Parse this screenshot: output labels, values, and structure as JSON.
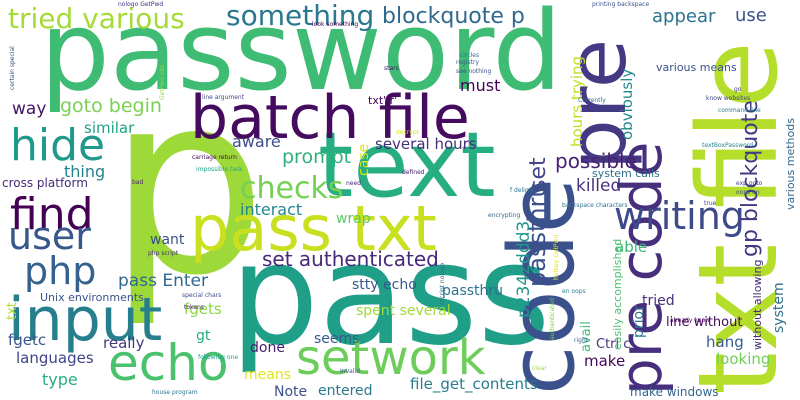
{
  "words": [
    {
      "text": "password",
      "color": "#3fbc73"
    },
    {
      "text": "p",
      "color": "#9ed93a"
    },
    {
      "text": "pass",
      "color": "#1f9f88"
    },
    {
      "text": "text",
      "color": "#26ad81"
    },
    {
      "text": "batch file",
      "color": "#450b5e"
    },
    {
      "text": "pre",
      "color": "#443a83"
    },
    {
      "text": "code",
      "color": "#3b518b"
    },
    {
      "text": "txt file",
      "color": "#b5de2b"
    },
    {
      "text": "pass txt",
      "color": "#c8e020"
    },
    {
      "text": "echo",
      "color": "#4ac16d"
    },
    {
      "text": "setwork",
      "color": "#6ccd5a"
    },
    {
      "text": "input",
      "color": "#277f8e"
    },
    {
      "text": "pre code",
      "color": "#472f7d"
    },
    {
      "text": "find",
      "color": "#440154"
    },
    {
      "text": "hide",
      "color": "#1f9a8a"
    },
    {
      "text": "user",
      "color": "#38588c"
    },
    {
      "text": "php",
      "color": "#33638d"
    },
    {
      "text": "writing",
      "color": "#3e4a89"
    },
    {
      "text": "checks",
      "color": "#75d054"
    },
    {
      "text": "tried various",
      "color": "#a5db36"
    },
    {
      "text": "something",
      "color": "#2a788e"
    },
    {
      "text": "blockquote p",
      "color": "#31688e"
    },
    {
      "text": "gp blockquote",
      "color": "#443983"
    },
    {
      "text": "set",
      "color": "#404688"
    },
    {
      "text": "passthru",
      "color": "#3b518b"
    },
    {
      "text": "p2342ddd3",
      "color": "#1f968b"
    },
    {
      "text": "possible",
      "color": "#482173"
    },
    {
      "text": "set authenticated",
      "color": "#482878"
    },
    {
      "text": "goto begin",
      "color": "#7ad151"
    },
    {
      "text": "prompt",
      "color": "#2db27d"
    },
    {
      "text": "interact",
      "color": "#24868e"
    },
    {
      "text": "aware",
      "color": "#3e4c8a"
    },
    {
      "text": "thing",
      "color": "#25838e"
    },
    {
      "text": "similar",
      "color": "#1fa287"
    },
    {
      "text": "way",
      "color": "#471365"
    },
    {
      "text": "must",
      "color": "#440154"
    },
    {
      "text": "appear",
      "color": "#2c728e"
    },
    {
      "text": "use",
      "color": "#3b528b"
    },
    {
      "text": "obviously",
      "color": "#23898e"
    },
    {
      "text": "hours trying",
      "color": "#c2df23"
    },
    {
      "text": "killed",
      "color": "#46337e"
    },
    {
      "text": "several hours",
      "color": "#472d7b"
    },
    {
      "text": "case",
      "color": "#dde318"
    },
    {
      "text": "want",
      "color": "#3d4d8a"
    },
    {
      "text": "wrap",
      "color": "#5cc863"
    },
    {
      "text": "able",
      "color": "#3aba76"
    },
    {
      "text": "pass Enter",
      "color": "#31688e"
    },
    {
      "text": "stty echo",
      "color": "#38598c"
    },
    {
      "text": "passthru",
      "color": "#2d718e"
    },
    {
      "text": "tried",
      "color": "#46307e"
    },
    {
      "text": "prior",
      "color": "#2a788e"
    },
    {
      "text": "system",
      "color": "#2e6f8e"
    },
    {
      "text": "fgets",
      "color": "#8bd646"
    },
    {
      "text": "gt",
      "color": "#25ac82"
    },
    {
      "text": "really",
      "color": "#453882"
    },
    {
      "text": "fgetc",
      "color": "#39568c"
    },
    {
      "text": "languages",
      "color": "#404387"
    },
    {
      "text": "type",
      "color": "#29af7f"
    },
    {
      "text": "done",
      "color": "#481d6f"
    },
    {
      "text": "seems",
      "color": "#375a8c"
    },
    {
      "text": "spent several",
      "color": "#a0da39"
    },
    {
      "text": "means",
      "color": "#e2e418"
    },
    {
      "text": "Note",
      "color": "#3b528b"
    },
    {
      "text": "entered",
      "color": "#2a788e"
    },
    {
      "text": "file_get_contents",
      "color": "#287c8e"
    },
    {
      "text": "make",
      "color": "#46085c"
    },
    {
      "text": "hang",
      "color": "#365c8d"
    },
    {
      "text": "Ctrl c",
      "color": "#46337e"
    },
    {
      "text": "looking",
      "color": "#6ece58"
    },
    {
      "text": "make windows",
      "color": "#32658e"
    },
    {
      "text": "line without",
      "color": "#46085c"
    },
    {
      "text": "avail",
      "color": "#3dbc74"
    },
    {
      "text": "easily accomplished",
      "color": "#4cc26c"
    },
    {
      "text": "Unix environments",
      "color": "#3b528b"
    },
    {
      "text": "txt",
      "color": "#addc30"
    },
    {
      "text": "cross platform",
      "color": "#472a7a"
    },
    {
      "text": "various means",
      "color": "#3b528b"
    },
    {
      "text": "system calls",
      "color": "#2d708e"
    },
    {
      "text": "txt' r'",
      "color": "#440154"
    },
    {
      "text": "various methods",
      "color": "#31688e"
    },
    {
      "text": "without allowing",
      "color": "#472c7a"
    },
    {
      "text": "textBoxPassword",
      "color": "#25848e"
    },
    {
      "text": "nologo GetPwd",
      "color": "#46327e"
    },
    {
      "text": "look something",
      "color": "#440154"
    },
    {
      "text": "printing backspace",
      "color": "#3b528b"
    },
    {
      "text": "command line",
      "color": "#2a788e"
    },
    {
      "text": "know websites",
      "color": "#414487"
    },
    {
      "text": "backspace characters",
      "color": "#2c728e"
    },
    {
      "text": "carriage return",
      "color": "#450559"
    },
    {
      "text": "line argument",
      "color": "#3e4989"
    },
    {
      "text": "impossible task",
      "color": "#20a486"
    },
    {
      "text": "registry",
      "color": "#38588c"
    },
    {
      "text": "see nothing",
      "color": "#3b528b"
    },
    {
      "text": "circles",
      "color": "#2c728e"
    },
    {
      "text": "stars",
      "color": "#471063"
    },
    {
      "text": "need",
      "color": "#482677"
    },
    {
      "text": "defined",
      "color": "#482475"
    },
    {
      "text": "f delims",
      "color": "#2c728e"
    },
    {
      "text": "encrypting",
      "color": "#31688e"
    },
    {
      "text": "already know",
      "color": "#440154"
    },
    {
      "text": "oops en",
      "color": "#3b528b"
    },
    {
      "text": "php script",
      "color": "#472f7d"
    },
    {
      "text": "special chars",
      "color": "#3e4a89"
    },
    {
      "text": "tokens",
      "color": "#48186a"
    },
    {
      "text": "following one",
      "color": "#1f9e89"
    },
    {
      "text": "Invalid",
      "color": "#3b528b"
    },
    {
      "text": "house program",
      "color": "#2a788e"
    },
    {
      "text": "clear",
      "color": "#a2da37"
    },
    {
      "text": "right",
      "color": "#34608d"
    },
    {
      "text": "bad",
      "color": "#482071"
    },
    {
      "text": "decrypt",
      "color": "#d8e219"
    },
    {
      "text": "Currently",
      "color": "#2c728e"
    },
    {
      "text": "exp goto",
      "color": "#414487"
    },
    {
      "text": "en oops",
      "color": "#277f8e"
    },
    {
      "text": "go",
      "color": "#433d84"
    },
    {
      "text": "true",
      "color": "#3e4989"
    },
    {
      "text": "cscript nologo",
      "color": "#31688e"
    },
    {
      "text": "certain special",
      "color": "#3b528b"
    },
    {
      "text": "authenticated",
      "color": "#7ad151"
    },
    {
      "text": "GetPwd vbs",
      "color": "#8fd744"
    },
    {
      "text": "hotkey GetPwd",
      "color": "#e2e418"
    }
  ]
}
